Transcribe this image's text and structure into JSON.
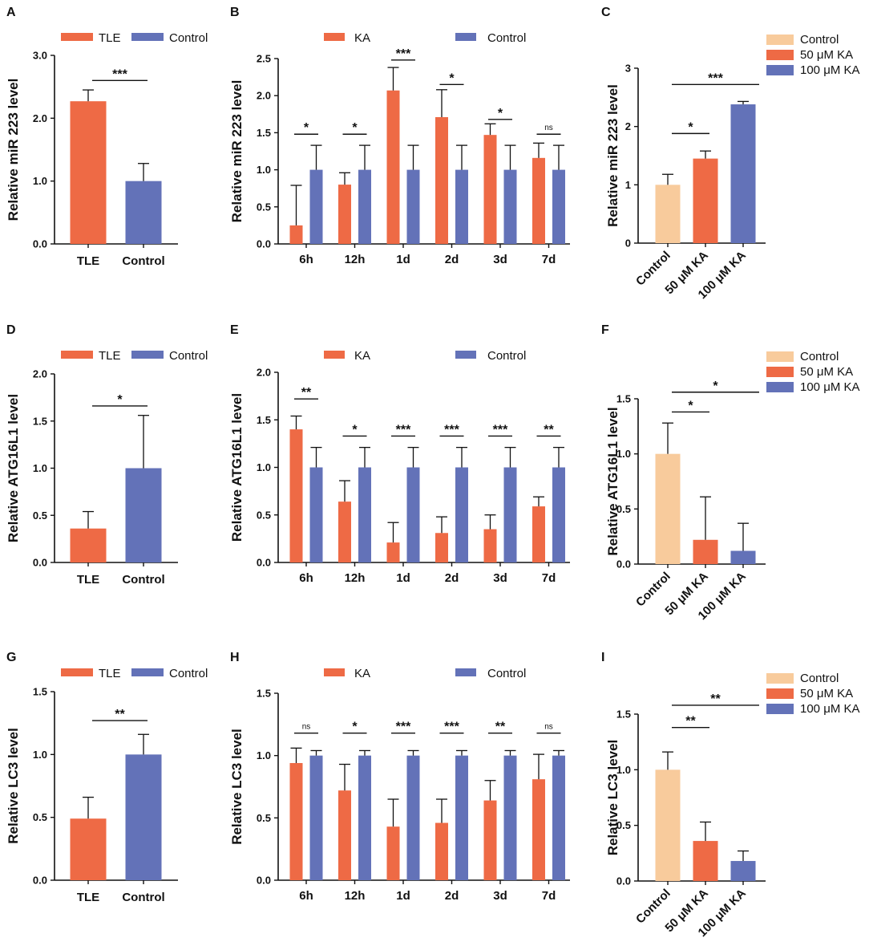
{
  "colors": {
    "ka": "#EE6A45",
    "control": "#6372B8",
    "light": "#F8CB9C",
    "axis": "#111111"
  },
  "chart_data": [
    {
      "panel": "A",
      "type": "bar",
      "ylabel": "Relative miR 223  level",
      "ylim": [
        0,
        3
      ],
      "yticks": [
        "0.0",
        "1.0",
        "2.0",
        "3.0"
      ],
      "ytick_values": [
        0,
        1,
        2,
        3
      ],
      "legend": [
        {
          "name": "TLE",
          "color": "ka"
        },
        {
          "name": "Control",
          "color": "control"
        }
      ],
      "categories": [
        "TLE",
        "Control"
      ],
      "values": [
        2.27,
        1.0
      ],
      "errors": [
        0.18,
        0.28
      ],
      "colors": [
        "ka",
        "control"
      ],
      "significance": [
        {
          "from": 0,
          "to": 1,
          "label": "***",
          "y": 2.6
        }
      ]
    },
    {
      "panel": "B",
      "type": "bar",
      "ylabel": "Relative miR 223  level",
      "ylim": [
        0,
        2.5
      ],
      "yticks": [
        "0.0",
        "0.5",
        "1.0",
        "1.5",
        "2.0",
        "2.5"
      ],
      "ytick_values": [
        0,
        0.5,
        1,
        1.5,
        2,
        2.5
      ],
      "legend": [
        {
          "name": "KA",
          "color": "ka"
        },
        {
          "name": "Control",
          "color": "control"
        }
      ],
      "categories": [
        "6h",
        "12h",
        "1d",
        "2d",
        "3d",
        "7d"
      ],
      "series": [
        {
          "name": "KA",
          "color": "ka",
          "values": [
            0.25,
            0.8,
            2.07,
            1.71,
            1.47,
            1.16
          ],
          "errors": [
            0.54,
            0.16,
            0.31,
            0.37,
            0.15,
            0.2
          ]
        },
        {
          "name": "Control",
          "color": "control",
          "values": [
            1.0,
            1.0,
            1.0,
            1.0,
            1.0,
            1.0
          ],
          "errors": [
            0.33,
            0.33,
            0.33,
            0.33,
            0.33,
            0.33
          ]
        }
      ],
      "significance": [
        {
          "label": "*",
          "y": 1.48
        },
        {
          "label": "*",
          "y": 1.48
        },
        {
          "label": "***",
          "y": 2.48
        },
        {
          "label": "*",
          "y": 2.15
        },
        {
          "label": "*",
          "y": 1.68
        },
        {
          "label": "ns",
          "y": 1.48
        }
      ]
    },
    {
      "panel": "C",
      "type": "bar",
      "ylabel": "Relative miR 223  level",
      "ylim": [
        0,
        3
      ],
      "yticks": [
        "0",
        "1",
        "2",
        "3"
      ],
      "ytick_values": [
        0,
        1,
        2,
        3
      ],
      "legend": [
        {
          "name": "Control",
          "color": "light"
        },
        {
          "name": "50 μM KA",
          "color": "ka"
        },
        {
          "name": "100 μM KA",
          "color": "control"
        }
      ],
      "categories": [
        "Control",
        "50 μM KA",
        "100 μM KA"
      ],
      "values": [
        1.0,
        1.45,
        2.38
      ],
      "errors": [
        0.18,
        0.13,
        0.05
      ],
      "colors": [
        "light",
        "ka",
        "control"
      ],
      "significance": [
        {
          "from": 0,
          "to": 1,
          "label": "*",
          "y": 1.88
        },
        {
          "from": 0,
          "to": 2,
          "label": "***",
          "y": 2.72
        }
      ]
    },
    {
      "panel": "D",
      "type": "bar",
      "ylabel": "Relative ATG16L1  level",
      "ylim": [
        0,
        2
      ],
      "yticks": [
        "0.0",
        "0.5",
        "1.0",
        "1.5",
        "2.0"
      ],
      "ytick_values": [
        0,
        0.5,
        1,
        1.5,
        2
      ],
      "legend": [
        {
          "name": "TLE",
          "color": "ka"
        },
        {
          "name": "Control",
          "color": "control"
        }
      ],
      "categories": [
        "TLE",
        "Control"
      ],
      "values": [
        0.36,
        1.0
      ],
      "errors": [
        0.18,
        0.56
      ],
      "colors": [
        "ka",
        "control"
      ],
      "significance": [
        {
          "from": 0,
          "to": 1,
          "label": "*",
          "y": 1.66
        }
      ]
    },
    {
      "panel": "E",
      "type": "bar",
      "ylabel": "Relative ATG16L1  level",
      "ylim": [
        0,
        2
      ],
      "yticks": [
        "0.0",
        "0.5",
        "1.0",
        "1.5",
        "2.0"
      ],
      "ytick_values": [
        0,
        0.5,
        1,
        1.5,
        2
      ],
      "legend": [
        {
          "name": "KA",
          "color": "ka"
        },
        {
          "name": "Control",
          "color": "control"
        }
      ],
      "categories": [
        "6h",
        "12h",
        "1d",
        "2d",
        "3d",
        "7d"
      ],
      "series": [
        {
          "name": "KA",
          "color": "ka",
          "values": [
            1.4,
            0.64,
            0.21,
            0.31,
            0.35,
            0.59
          ],
          "errors": [
            0.14,
            0.22,
            0.21,
            0.17,
            0.15,
            0.1
          ]
        },
        {
          "name": "Control",
          "color": "control",
          "values": [
            1.0,
            1.0,
            1.0,
            1.0,
            1.0,
            1.0
          ],
          "errors": [
            0.21,
            0.21,
            0.21,
            0.21,
            0.21,
            0.21
          ]
        }
      ],
      "significance": [
        {
          "label": "**",
          "y": 1.72
        },
        {
          "label": "*",
          "y": 1.33
        },
        {
          "label": "***",
          "y": 1.33
        },
        {
          "label": "***",
          "y": 1.33
        },
        {
          "label": "***",
          "y": 1.33
        },
        {
          "label": "**",
          "y": 1.33
        }
      ]
    },
    {
      "panel": "F",
      "type": "bar",
      "ylabel": "Relative ATG16L1  level",
      "ylim": [
        0,
        1.5
      ],
      "yticks": [
        "0.0",
        "0.5",
        "1.0",
        "1.5"
      ],
      "ytick_values": [
        0,
        0.5,
        1,
        1.5
      ],
      "legend": [
        {
          "name": "Control",
          "color": "light"
        },
        {
          "name": "50 μM KA",
          "color": "ka"
        },
        {
          "name": "100 μM KA",
          "color": "control"
        }
      ],
      "categories": [
        "Control",
        "50 μM KA",
        "100 μM KA"
      ],
      "values": [
        1.0,
        0.22,
        0.12
      ],
      "errors": [
        0.28,
        0.39,
        0.25
      ],
      "colors": [
        "light",
        "ka",
        "control"
      ],
      "significance": [
        {
          "from": 0,
          "to": 1,
          "label": "*",
          "y": 1.38
        },
        {
          "from": 0,
          "to": 2,
          "label": "*",
          "y": 1.56
        }
      ]
    },
    {
      "panel": "G",
      "type": "bar",
      "ylabel": "Relative LC3  level",
      "ylim": [
        0,
        1.5
      ],
      "yticks": [
        "0.0",
        "0.5",
        "1.0",
        "1.5"
      ],
      "ytick_values": [
        0,
        0.5,
        1,
        1.5
      ],
      "legend": [
        {
          "name": "TLE",
          "color": "ka"
        },
        {
          "name": "Control",
          "color": "control"
        }
      ],
      "categories": [
        "TLE",
        "Control"
      ],
      "values": [
        0.49,
        1.0
      ],
      "errors": [
        0.17,
        0.16
      ],
      "colors": [
        "ka",
        "control"
      ],
      "significance": [
        {
          "from": 0,
          "to": 1,
          "label": "**",
          "y": 1.27
        }
      ]
    },
    {
      "panel": "H",
      "type": "bar",
      "ylabel": "Relative LC3  level",
      "ylim": [
        0,
        1.5
      ],
      "yticks": [
        "0.0",
        "0.5",
        "1.0",
        "1.5"
      ],
      "ytick_values": [
        0,
        0.5,
        1,
        1.5
      ],
      "legend": [
        {
          "name": "KA",
          "color": "ka"
        },
        {
          "name": "Control",
          "color": "control"
        }
      ],
      "categories": [
        "6h",
        "12h",
        "1d",
        "2d",
        "3d",
        "7d"
      ],
      "series": [
        {
          "name": "KA",
          "color": "ka",
          "values": [
            0.94,
            0.72,
            0.43,
            0.46,
            0.64,
            0.81
          ],
          "errors": [
            0.12,
            0.21,
            0.22,
            0.19,
            0.16,
            0.2
          ]
        },
        {
          "name": "Control",
          "color": "control",
          "values": [
            1.0,
            1.0,
            1.0,
            1.0,
            1.0,
            1.0
          ],
          "errors": [
            0.04,
            0.04,
            0.04,
            0.04,
            0.04,
            0.04
          ]
        }
      ],
      "significance": [
        {
          "label": "ns",
          "y": 1.18
        },
        {
          "label": "*",
          "y": 1.18
        },
        {
          "label": "***",
          "y": 1.18
        },
        {
          "label": "***",
          "y": 1.18
        },
        {
          "label": "**",
          "y": 1.18
        },
        {
          "label": "ns",
          "y": 1.18
        }
      ]
    },
    {
      "panel": "I",
      "type": "bar",
      "ylabel": "Relative LC3  level",
      "ylim": [
        0,
        1.5
      ],
      "yticks": [
        "0.0",
        "0.5",
        "1.0",
        "1.5"
      ],
      "ytick_values": [
        0,
        0.5,
        1,
        1.5
      ],
      "legend": [
        {
          "name": "Control",
          "color": "light"
        },
        {
          "name": "50 μM KA",
          "color": "ka"
        },
        {
          "name": "100 μM KA",
          "color": "control"
        }
      ],
      "categories": [
        "Control",
        "50 μM KA",
        "100 μM KA"
      ],
      "values": [
        1.0,
        0.36,
        0.18
      ],
      "errors": [
        0.16,
        0.17,
        0.09
      ],
      "colors": [
        "light",
        "ka",
        "control"
      ],
      "significance": [
        {
          "from": 0,
          "to": 1,
          "label": "**",
          "y": 1.38
        },
        {
          "from": 0,
          "to": 2,
          "label": "**",
          "y": 1.58
        }
      ]
    }
  ]
}
